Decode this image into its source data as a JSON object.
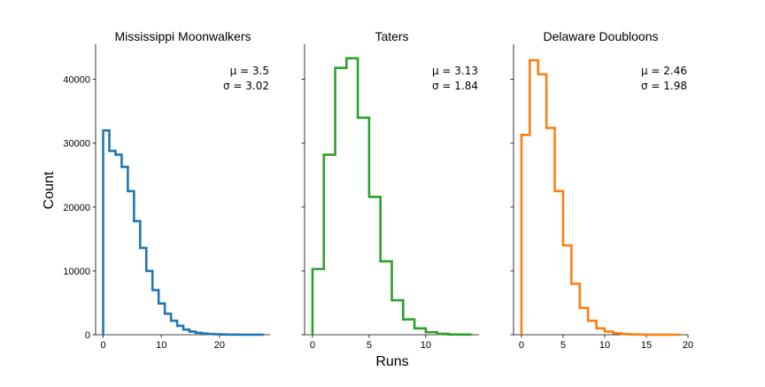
{
  "chart_data": [
    {
      "type": "histogram",
      "title": "Mississippi Moonwalkers",
      "color": "#1f77b4",
      "annotation": {
        "mu": "μ = 3.5",
        "sigma": "σ = 3.02"
      },
      "xticks": [
        0,
        10,
        20
      ],
      "yticks": [
        0,
        10000,
        20000,
        30000,
        40000
      ],
      "xlim": [
        -1.3,
        28.7
      ],
      "ylim": [
        0,
        45500
      ],
      "bin_edges": [
        0,
        1.06,
        2.12,
        3.18,
        4.24,
        5.3,
        6.36,
        7.42,
        8.48,
        9.54,
        10.6,
        11.66,
        12.72,
        13.78,
        14.84,
        15.9,
        16.96,
        18.02,
        19.08,
        20.14,
        21.2,
        22.26,
        23.32,
        24.38,
        25.44,
        26.5,
        27.56
      ],
      "counts": [
        32000,
        28800,
        28200,
        26300,
        22500,
        17800,
        13600,
        10000,
        7000,
        4900,
        3300,
        2200,
        1400,
        800,
        500,
        300,
        200,
        120,
        80,
        50,
        30,
        20,
        12,
        8,
        5,
        3
      ]
    },
    {
      "type": "histogram",
      "title": "Taters",
      "color": "#2ca02c",
      "annotation": {
        "mu": "μ = 3.13",
        "sigma": "σ = 1.84"
      },
      "xticks": [
        0,
        5,
        10
      ],
      "yticks": [
        0,
        10000,
        20000,
        30000,
        40000
      ],
      "xlim": [
        -0.7,
        14.7
      ],
      "ylim": [
        0,
        45500
      ],
      "bin_edges": [
        0,
        1,
        2,
        3,
        4,
        5,
        6,
        7,
        8,
        9,
        10,
        11,
        12,
        13,
        14
      ],
      "counts": [
        10300,
        28200,
        41800,
        43300,
        34000,
        21600,
        11500,
        5400,
        2400,
        1000,
        400,
        150,
        50,
        20
      ]
    },
    {
      "type": "histogram",
      "title": "Delaware Doubloons",
      "color": "#ff7f0e",
      "annotation": {
        "mu": "μ = 2.46",
        "sigma": "σ = 1.98"
      },
      "xticks": [
        0,
        5,
        10,
        15,
        20
      ],
      "yticks": [
        0,
        10000,
        20000,
        30000,
        40000
      ],
      "xlim": [
        -0.95,
        20
      ],
      "ylim": [
        0,
        45500
      ],
      "bin_edges": [
        0,
        1,
        2,
        3,
        4,
        5,
        6,
        7,
        8,
        9,
        10,
        11,
        12,
        13,
        14,
        15,
        16,
        17,
        18,
        19
      ],
      "counts": [
        31300,
        43000,
        40800,
        32400,
        22500,
        14000,
        8000,
        4200,
        2200,
        1000,
        500,
        250,
        120,
        60,
        30,
        15,
        8,
        4,
        2
      ]
    }
  ],
  "shared_xlabel": "Runs",
  "shared_ylabel": "Count"
}
